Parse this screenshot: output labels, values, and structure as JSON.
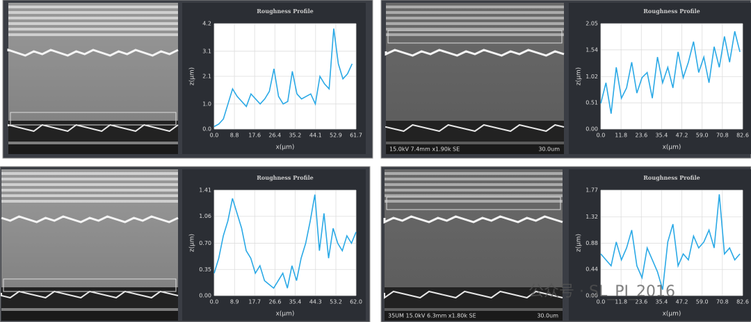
{
  "chart_data": [
    {
      "type": "line",
      "title": "Roughness Profile",
      "x_label": "x(μm)",
      "y_label": "z(μm)",
      "color": "#2aa9e6",
      "grid": true,
      "xlim": [
        0,
        61.7
      ],
      "ylim": [
        0,
        4.2
      ],
      "xticks": [
        {
          "value": 0,
          "label": "0.0"
        },
        8.8,
        17.6,
        26.4,
        35.2,
        44.1,
        52.9,
        61.7
      ],
      "yticks": [
        {
          "value": 0,
          "label": "0.0"
        },
        {
          "value": 1,
          "label": "1.0"
        },
        2.1,
        3.1,
        4.2
      ],
      "x": [
        0,
        2,
        4,
        6,
        8,
        10,
        12,
        14,
        16,
        18,
        20,
        22,
        24,
        26,
        28,
        30,
        32,
        34,
        36,
        38,
        40,
        42,
        44,
        46,
        48,
        50,
        52,
        54,
        56,
        58,
        60
      ],
      "values": [
        0.1,
        0.2,
        0.4,
        1.0,
        1.6,
        1.3,
        1.1,
        0.9,
        1.4,
        1.2,
        1.0,
        1.2,
        1.5,
        2.4,
        1.3,
        1.0,
        1.1,
        2.3,
        1.4,
        1.2,
        1.3,
        1.4,
        1.0,
        2.1,
        1.8,
        1.6,
        4.0,
        2.6,
        2.0,
        2.2,
        2.6
      ]
    },
    {
      "type": "line",
      "title": "Roughness Profile",
      "x_label": "x(μm)",
      "y_label": "z(μm)",
      "color": "#2aa9e6",
      "grid": true,
      "xlim": [
        0,
        82.6
      ],
      "ylim": [
        0,
        2.05
      ],
      "xticks": [
        {
          "value": 0,
          "label": "0.0"
        },
        11.8,
        23.6,
        35.4,
        47.2,
        {
          "value": 59,
          "label": "59.0"
        },
        70.8,
        82.6
      ],
      "yticks": [
        {
          "value": 0,
          "label": "0.00"
        },
        0.51,
        1.02,
        1.54,
        2.05
      ],
      "x": [
        0,
        3,
        6,
        9,
        12,
        15,
        18,
        21,
        24,
        27,
        30,
        33,
        36,
        39,
        42,
        45,
        48,
        51,
        54,
        57,
        60,
        63,
        66,
        69,
        72,
        75,
        78,
        81
      ],
      "values": [
        0.5,
        0.9,
        0.3,
        1.2,
        0.6,
        0.8,
        1.3,
        0.7,
        1.0,
        1.1,
        0.6,
        1.4,
        0.9,
        1.2,
        0.8,
        1.5,
        1.0,
        1.3,
        1.7,
        1.1,
        1.4,
        0.9,
        1.6,
        1.2,
        1.8,
        1.3,
        1.9,
        1.5
      ]
    },
    {
      "type": "line",
      "title": "Roughness Profile",
      "x_label": "x(μm)",
      "y_label": "z(μm)",
      "color": "#2aa9e6",
      "grid": true,
      "xlim": [
        0,
        62
      ],
      "ylim": [
        0,
        1.41
      ],
      "xticks": [
        {
          "value": 0,
          "label": "0.0"
        },
        8.9,
        17.7,
        26.6,
        35.4,
        44.3,
        53.2,
        {
          "value": 62,
          "label": "62.0"
        }
      ],
      "yticks": [
        {
          "value": 0,
          "label": "0.00"
        },
        0.35,
        {
          "value": 0.7,
          "label": "0.70"
        },
        1.06,
        1.41
      ],
      "x": [
        0,
        2,
        4,
        6,
        8,
        10,
        12,
        14,
        16,
        18,
        20,
        22,
        24,
        26,
        28,
        30,
        32,
        34,
        36,
        38,
        40,
        42,
        44,
        46,
        48,
        50,
        52,
        54,
        56,
        58,
        60,
        62
      ],
      "values": [
        0.3,
        0.5,
        0.8,
        1.0,
        1.3,
        1.1,
        0.9,
        0.6,
        0.5,
        0.3,
        0.4,
        0.2,
        0.15,
        0.1,
        0.2,
        0.3,
        0.1,
        0.4,
        0.2,
        0.5,
        0.7,
        1.0,
        1.35,
        0.6,
        1.1,
        0.5,
        0.9,
        0.7,
        0.6,
        0.8,
        0.7,
        0.85
      ]
    },
    {
      "type": "line",
      "title": "Roughness Profile",
      "x_label": "x(μm)",
      "y_label": "z(μm)",
      "color": "#2aa9e6",
      "grid": true,
      "xlim": [
        0,
        82.6
      ],
      "ylim": [
        0,
        1.77
      ],
      "xticks": [
        {
          "value": 0,
          "label": "0.0"
        },
        11.8,
        23.6,
        35.4,
        47.2,
        {
          "value": 59,
          "label": "59.0"
        },
        70.8,
        82.6
      ],
      "yticks": [
        {
          "value": 0,
          "label": "0.00"
        },
        0.44,
        0.88,
        1.32,
        1.77
      ],
      "x": [
        0,
        3,
        6,
        9,
        12,
        15,
        18,
        21,
        24,
        27,
        30,
        33,
        36,
        39,
        42,
        45,
        48,
        51,
        54,
        57,
        60,
        63,
        66,
        69,
        72,
        75,
        78,
        81
      ],
      "values": [
        0.7,
        0.6,
        0.5,
        0.9,
        0.6,
        0.8,
        1.1,
        0.5,
        0.3,
        0.8,
        0.6,
        0.4,
        0.1,
        0.9,
        1.2,
        0.5,
        0.7,
        0.6,
        1.0,
        0.8,
        0.9,
        1.1,
        0.8,
        1.7,
        0.7,
        0.8,
        0.6,
        0.7
      ]
    }
  ],
  "sem_captions": [
    {
      "info": "15.0kV 7.4mm x1.90k SE",
      "scale": "30.0um"
    },
    {
      "info": "35UM 15.0kV 6.3mm x1.80k SE",
      "scale": "30.0um"
    }
  ],
  "watermark": "公众号 · SL_PI_2016"
}
